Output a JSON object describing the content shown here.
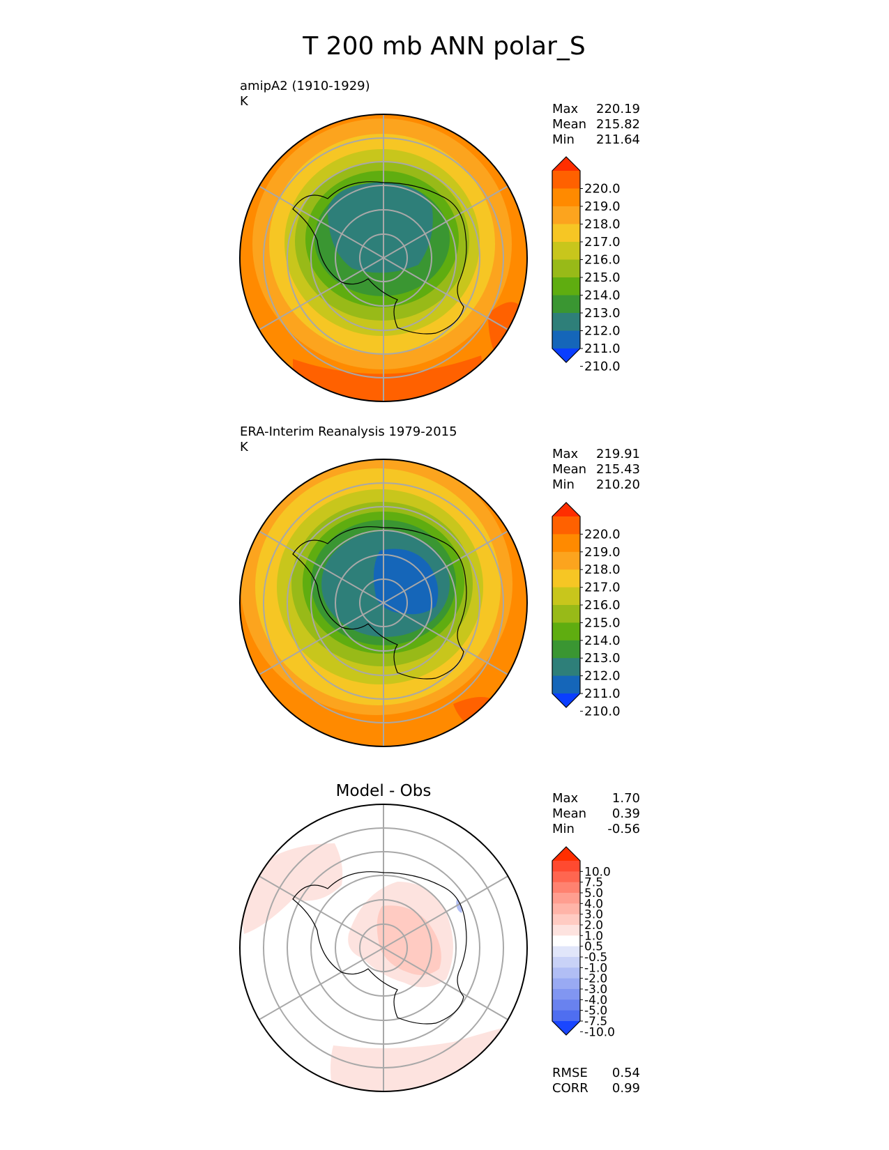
{
  "title": "T 200 mb ANN polar_S",
  "panels": [
    {
      "id": "model",
      "heading": "amipA2 (1910-1929)",
      "units": "K",
      "stats": [
        {
          "label": "Max",
          "value": "220.19"
        },
        {
          "label": "Mean",
          "value": "215.82"
        },
        {
          "label": "Min",
          "value": "211.64"
        }
      ],
      "colorbar": {
        "ticks": [
          "220.0",
          "219.0",
          "218.0",
          "217.0",
          "216.0",
          "215.0",
          "214.0",
          "213.0",
          "212.0",
          "211.0",
          "210.0"
        ],
        "colors": [
          "#ff2e00",
          "#ff6100",
          "#ff8a00",
          "#fca41e",
          "#f6c624",
          "#c8c61c",
          "#98ba18",
          "#5fad10",
          "#3a9632",
          "#2e7f79",
          "#1566b9",
          "#0a3eff"
        ]
      },
      "rings": [
        {
          "level": 217.5,
          "color": "#fca41e"
        },
        {
          "level": 216.5,
          "color": "#f6c624"
        },
        {
          "level": 215.5,
          "color": "#c8c61c"
        },
        {
          "level": 214.5,
          "color": "#98ba18"
        },
        {
          "level": 213.5,
          "color": "#5fad10"
        },
        {
          "level": 212.5,
          "color": "#3a9632"
        },
        {
          "level": 211.7,
          "color": "#2e7f79"
        }
      ]
    },
    {
      "id": "obs",
      "heading": "ERA-Interim Reanalysis 1979-2015",
      "units": "K",
      "stats": [
        {
          "label": "Max",
          "value": "219.91"
        },
        {
          "label": "Mean",
          "value": "215.43"
        },
        {
          "label": "Min",
          "value": "210.20"
        }
      ],
      "colorbar": {
        "ticks": [
          "220.0",
          "219.0",
          "218.0",
          "217.0",
          "216.0",
          "215.0",
          "214.0",
          "213.0",
          "212.0",
          "211.0",
          "210.0"
        ],
        "colors": [
          "#ff2e00",
          "#ff6100",
          "#ff8a00",
          "#fca41e",
          "#f6c624",
          "#c8c61c",
          "#98ba18",
          "#5fad10",
          "#3a9632",
          "#2e7f79",
          "#1566b9",
          "#0a3eff"
        ]
      },
      "rings": [
        {
          "level": 217.5,
          "color": "#fca41e"
        },
        {
          "level": 216.5,
          "color": "#f6c624"
        },
        {
          "level": 215.5,
          "color": "#c8c61c"
        },
        {
          "level": 214.5,
          "color": "#98ba18"
        },
        {
          "level": 213.5,
          "color": "#5fad10"
        },
        {
          "level": 212.5,
          "color": "#3a9632"
        },
        {
          "level": 211.5,
          "color": "#2e7f79"
        },
        {
          "level": 210.6,
          "color": "#1566b9"
        }
      ]
    },
    {
      "id": "diff",
      "heading": "Model - Obs",
      "units": "",
      "stats": [
        {
          "label": "Max",
          "value": "1.70"
        },
        {
          "label": "Mean",
          "value": "0.39"
        },
        {
          "label": "Min",
          "value": "-0.56"
        }
      ],
      "colorbar": {
        "ticks": [
          "10.0",
          "7.5",
          "5.0",
          "4.0",
          "3.0",
          "2.0",
          "1.0",
          "0.5",
          "-0.5",
          "-1.0",
          "-2.0",
          "-3.0",
          "-4.0",
          "-5.0",
          "-7.5",
          "-10.0"
        ],
        "colors": [
          "#ff2e00",
          "#ff4a30",
          "#ff6650",
          "#ff8270",
          "#ff9e90",
          "#ffb4a8",
          "#ffcbc2",
          "#fde3df",
          "#ffffff",
          "#e1e6fa",
          "#c9d2f7",
          "#b1bef5",
          "#99aaf3",
          "#8196f1",
          "#6982ef",
          "#4f6ef0",
          "#1a46ff"
        ]
      },
      "footer_stats": [
        {
          "label": "RMSE",
          "value": "0.54"
        },
        {
          "label": "CORR",
          "value": "0.99"
        }
      ]
    }
  ]
}
